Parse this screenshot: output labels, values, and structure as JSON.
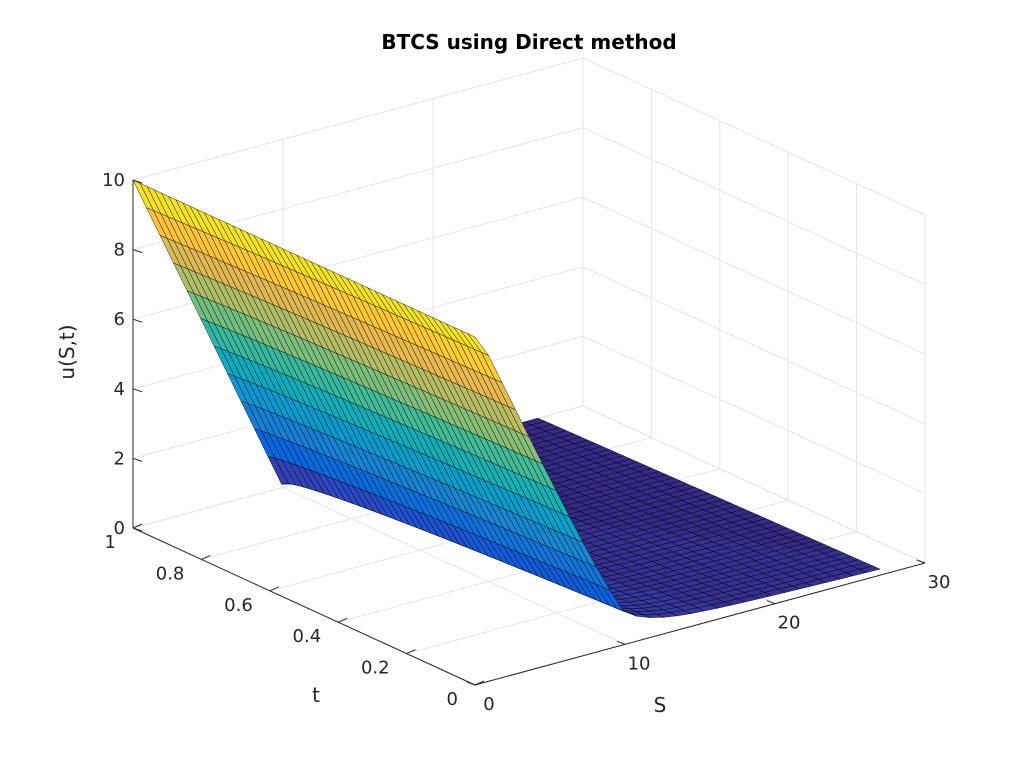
{
  "chart_data": {
    "type": "surface",
    "title": "BTCS using Direct method",
    "xlabel": "S",
    "ylabel": "t",
    "zlabel": "u(S,t)",
    "xlim": [
      0,
      30
    ],
    "ylim": [
      0,
      1
    ],
    "zlim": [
      0,
      10
    ],
    "xticks": [
      0,
      10,
      20,
      30
    ],
    "yticks": [
      0,
      0.2,
      0.4,
      0.6,
      0.8,
      1
    ],
    "zticks": [
      0,
      2,
      4,
      6,
      8,
      10
    ],
    "x_tick_labels": [
      "0",
      "10",
      "20",
      "30"
    ],
    "y_tick_labels": [
      "0",
      "0.2",
      "0.4",
      "0.6",
      "0.8",
      "1"
    ],
    "z_tick_labels": [
      "0",
      "2",
      "4",
      "6",
      "8",
      "10"
    ],
    "grid": true,
    "colormap": "parula",
    "strike_K": 10,
    "surface_x_max": 27,
    "surface_grid": {
      "nS": 30,
      "nt": 48
    },
    "sample_points": [
      {
        "S": 0,
        "t": 1,
        "u": 10
      },
      {
        "S": 0,
        "t": 0,
        "u": 10
      },
      {
        "S": 10,
        "t": 1,
        "u": 0
      },
      {
        "S": 10,
        "t": 0,
        "u": 0.05
      },
      {
        "S": 27,
        "t": 0,
        "u": 0
      },
      {
        "S": 27,
        "t": 1,
        "u": 0
      }
    ]
  }
}
